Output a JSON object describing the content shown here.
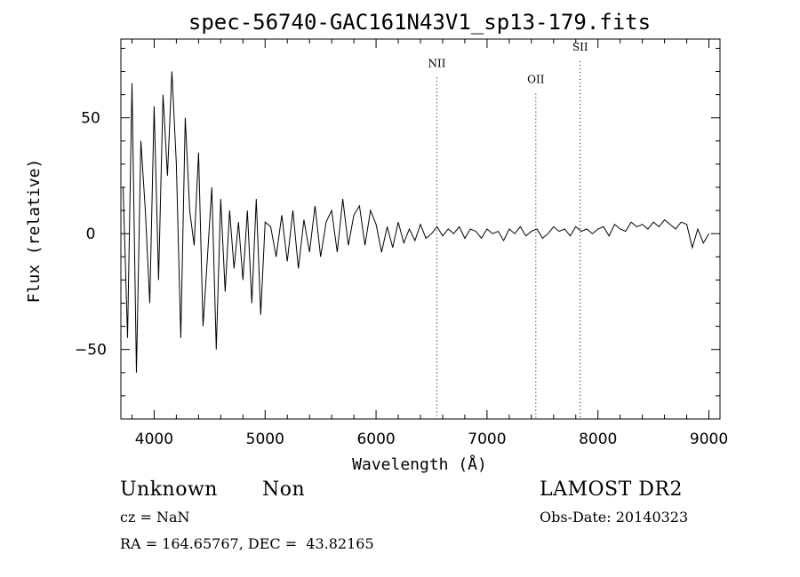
{
  "chart_data": {
    "type": "line",
    "title": "spec-56740-GAC161N43V1_sp13-179.fits",
    "xlabel": "Wavelength (Å)",
    "ylabel": "Flux (relative)",
    "xlim": [
      3700,
      9100
    ],
    "ylim": [
      -80,
      84
    ],
    "xticks": [
      4000,
      5000,
      6000,
      7000,
      8000,
      9000
    ],
    "xtick_labels": [
      "4000",
      "5000",
      "6000",
      "7000",
      "8000",
      "9000"
    ],
    "yticks": [
      -50,
      0,
      50
    ],
    "ytick_labels": [
      "−50",
      "0",
      "50"
    ],
    "grid": false,
    "lines": [
      {
        "label": "NII",
        "x": 6548,
        "label_y": 72
      },
      {
        "label": "OII",
        "x": 7440,
        "label_y": 65
      },
      {
        "label": "SII",
        "x": 7840,
        "label_y": 79
      }
    ],
    "series": [
      {
        "x": [
          3720,
          3760,
          3800,
          3840,
          3880,
          3920,
          3960,
          4000,
          4040,
          4080,
          4120,
          4160,
          4200,
          4240,
          4280,
          4320,
          4360,
          4400,
          4440,
          4480,
          4520,
          4560,
          4600,
          4640,
          4680,
          4720,
          4760,
          4800,
          4840,
          4880,
          4920,
          4960,
          5000,
          5050,
          5100,
          5150,
          5200,
          5250,
          5300,
          5350,
          5400,
          5450,
          5500,
          5550,
          5600,
          5650,
          5700,
          5750,
          5800,
          5850,
          5900,
          5950,
          6000,
          6050,
          6100,
          6150,
          6200,
          6250,
          6300,
          6350,
          6400,
          6450,
          6500,
          6550,
          6600,
          6650,
          6700,
          6750,
          6800,
          6850,
          6900,
          6950,
          7000,
          7050,
          7100,
          7150,
          7200,
          7250,
          7300,
          7350,
          7400,
          7450,
          7500,
          7550,
          7600,
          7650,
          7700,
          7750,
          7800,
          7850,
          7900,
          7950,
          8000,
          8050,
          8100,
          8150,
          8200,
          8250,
          8300,
          8350,
          8400,
          8450,
          8500,
          8550,
          8600,
          8650,
          8700,
          8750,
          8800,
          8850,
          8900,
          8950,
          9000
        ],
        "y": [
          20,
          -45,
          65,
          -60,
          40,
          10,
          -30,
          55,
          -20,
          60,
          25,
          70,
          30,
          -45,
          50,
          10,
          -5,
          35,
          -40,
          -10,
          20,
          -50,
          15,
          -25,
          10,
          -15,
          5,
          -20,
          10,
          -30,
          15,
          -35,
          5,
          3,
          -10,
          8,
          -12,
          10,
          -15,
          6,
          -8,
          12,
          -10,
          5,
          10,
          -8,
          15,
          -5,
          8,
          12,
          -5,
          10,
          4,
          -8,
          3,
          -6,
          5,
          -4,
          2,
          -3,
          4,
          -2,
          0,
          3,
          -1,
          2,
          0,
          3,
          -2,
          2,
          1,
          -2,
          2,
          0,
          1,
          -3,
          2,
          0,
          3,
          -1,
          1,
          2,
          -2,
          0,
          3,
          1,
          2,
          -1,
          3,
          1,
          2,
          0,
          2,
          3,
          -1,
          4,
          2,
          1,
          5,
          3,
          4,
          2,
          5,
          3,
          6,
          4,
          2,
          5,
          4,
          -6,
          2,
          -4,
          0
        ]
      }
    ]
  },
  "footer": {
    "object_type": "Unknown",
    "subclass": "Non",
    "survey": "LAMOST DR2",
    "cz": "cz = NaN",
    "obs_date": "Obs-Date: 20140323",
    "coords": "RA = 164.65767, DEC =  43.82165"
  }
}
